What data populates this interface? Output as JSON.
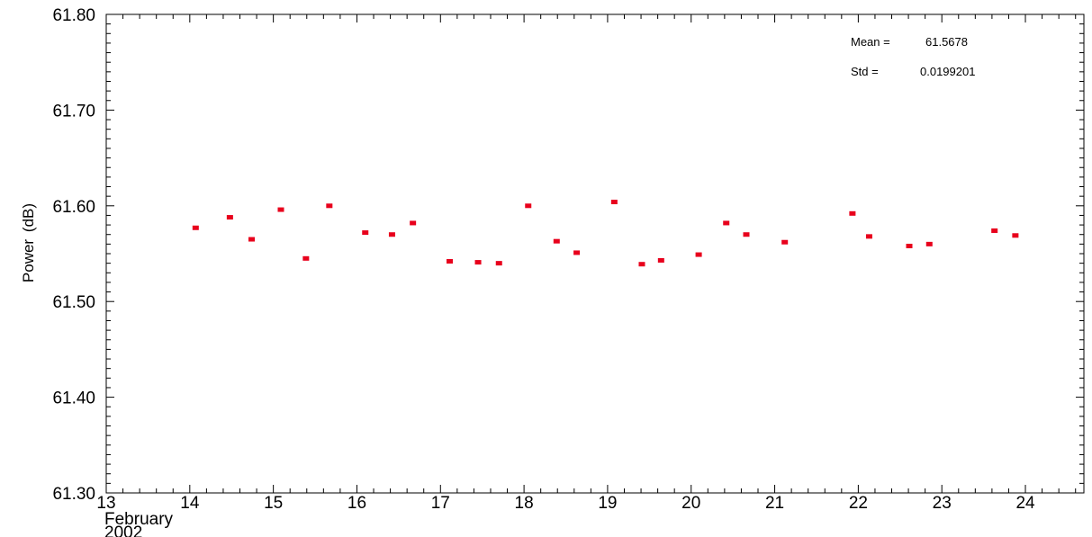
{
  "chart_data": {
    "type": "scatter",
    "ylabel_parts": [
      "Power",
      "(dB)"
    ],
    "x_ticks": [
      "13",
      "14",
      "15",
      "16",
      "17",
      "18",
      "19",
      "20",
      "21",
      "22",
      "23",
      "24"
    ],
    "x_sublabel": [
      "February",
      "2002"
    ],
    "y_ticks": [
      "61.30",
      "61.40",
      "61.50",
      "61.60",
      "61.70",
      "61.80"
    ],
    "xlim": [
      13,
      24.7
    ],
    "ylim": [
      61.3,
      61.8
    ],
    "x_minor_per_major": 4,
    "y_minor_per_major": 9,
    "grid": false,
    "marker_color": "#e8001c",
    "stats": {
      "mean_label": "Mean =",
      "mean_value": "61.5678",
      "std_label": "Std =",
      "std_value": "0.0199201"
    },
    "series": [
      {
        "points": [
          [
            14.07,
            61.577
          ],
          [
            14.48,
            61.588
          ],
          [
            14.74,
            61.565
          ],
          [
            15.09,
            61.596
          ],
          [
            15.39,
            61.545
          ],
          [
            15.67,
            61.6
          ],
          [
            16.1,
            61.572
          ],
          [
            16.42,
            61.57
          ],
          [
            16.67,
            61.582
          ],
          [
            17.11,
            61.542
          ],
          [
            17.45,
            61.541
          ],
          [
            17.7,
            61.54
          ],
          [
            18.05,
            61.6
          ],
          [
            18.39,
            61.563
          ],
          [
            18.63,
            61.551
          ],
          [
            19.08,
            61.604
          ],
          [
            19.41,
            61.539
          ],
          [
            19.64,
            61.543
          ],
          [
            20.09,
            61.549
          ],
          [
            20.42,
            61.582
          ],
          [
            20.66,
            61.57
          ],
          [
            21.12,
            61.562
          ],
          [
            21.93,
            61.592
          ],
          [
            22.13,
            61.568
          ],
          [
            22.61,
            61.558
          ],
          [
            22.85,
            61.56
          ],
          [
            23.63,
            61.574
          ],
          [
            23.88,
            61.569
          ]
        ]
      }
    ]
  }
}
